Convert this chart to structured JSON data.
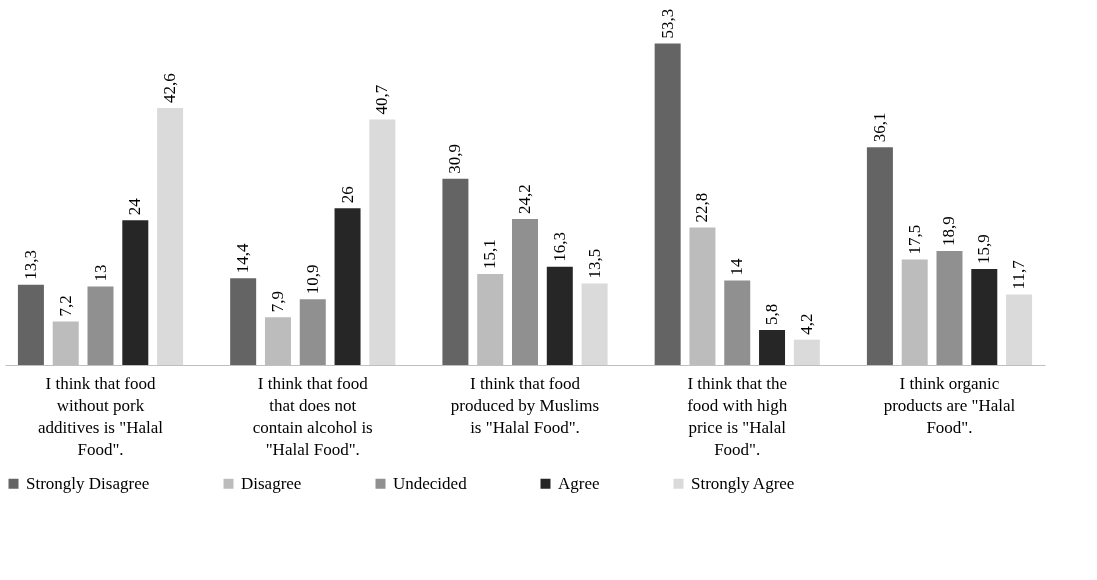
{
  "chart_data": {
    "type": "bar",
    "categories": [
      "I think that food without pork additives is \"Halal Food\".",
      "I think that food that does not contain alcohol is \"Halal Food\".",
      "I think that food produced by Muslims is \"Halal Food\".",
      "I think that the food with high price is \"Halal Food\".",
      "I think organic products are \"Halal Food\"."
    ],
    "series": [
      {
        "name": "Strongly Disagree",
        "color": "#646464",
        "values": [
          13.3,
          14.4,
          30.9,
          53.3,
          36.1
        ],
        "value_labels": [
          "13,3",
          "14,4",
          "30,9",
          "53,3",
          "36,1"
        ]
      },
      {
        "name": "Disagree",
        "color": "#bcbcbc",
        "values": [
          7.2,
          7.9,
          15.1,
          22.8,
          17.5
        ],
        "value_labels": [
          "7,2",
          "7,9",
          "15,1",
          "22,8",
          "17,5"
        ]
      },
      {
        "name": "Undecided",
        "color": "#909090",
        "values": [
          13,
          10.9,
          24.2,
          14,
          18.9
        ],
        "value_labels": [
          "13",
          "10,9",
          "24,2",
          "14",
          "18,9"
        ]
      },
      {
        "name": "Agree",
        "color": "#262626",
        "values": [
          24,
          26,
          16.3,
          5.8,
          15.9
        ],
        "value_labels": [
          "24",
          "26",
          "16,3",
          "5,8",
          "15,9"
        ]
      },
      {
        "name": "Strongly Agree",
        "color": "#dadada",
        "values": [
          42.6,
          40.7,
          13.5,
          4.2,
          11.7
        ],
        "value_labels": [
          "42,6",
          "40,7",
          "13,5",
          "4,2",
          "11,7"
        ]
      }
    ],
    "legend": "bottom",
    "grid": false
  }
}
